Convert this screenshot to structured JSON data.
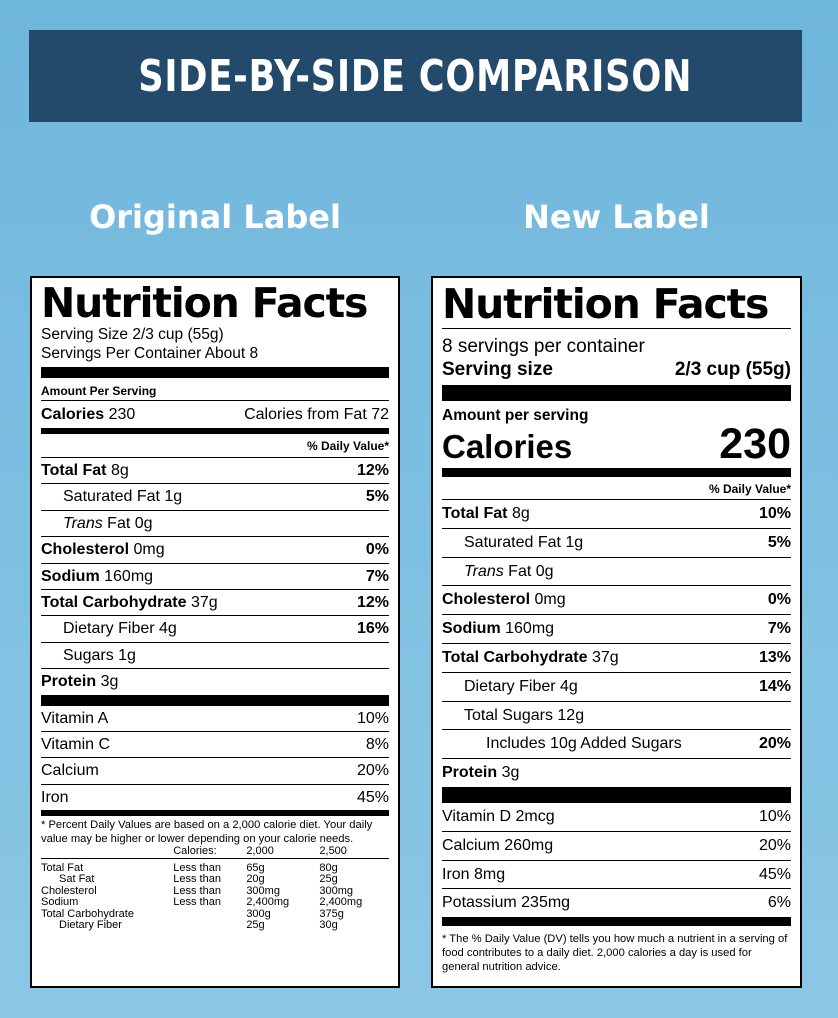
{
  "banner": "SIDE-BY-SIDE COMPARISON",
  "original": {
    "heading": "Original Label",
    "title": "Nutrition Facts",
    "serving_size": "Serving Size 2/3 cup (55g)",
    "servings_per_container": "Servings Per Container About 8",
    "amount_per_serving": "Amount Per Serving",
    "calories_label": "Calories",
    "calories_value": "230",
    "calories_from_fat": "Calories from Fat 72",
    "dv_header": "% Daily Value*",
    "nutrients": [
      {
        "name": "Total Fat",
        "amount": "8g",
        "dv": "12%"
      },
      {
        "name": "Saturated Fat",
        "amount": "1g",
        "dv": "5%"
      },
      {
        "name": "Trans",
        "amount": "Fat 0g",
        "dv": ""
      },
      {
        "name": "Cholesterol",
        "amount": "0mg",
        "dv": "0%"
      },
      {
        "name": "Sodium",
        "amount": "160mg",
        "dv": "7%"
      },
      {
        "name": "Total Carbohydrate",
        "amount": "37g",
        "dv": "12%"
      },
      {
        "name": "Dietary Fiber",
        "amount": "4g",
        "dv": "16%"
      },
      {
        "name": "Sugars",
        "amount": "1g",
        "dv": ""
      },
      {
        "name": "Protein",
        "amount": "3g",
        "dv": ""
      }
    ],
    "vitamins": [
      {
        "name": "Vitamin A",
        "dv": "10%"
      },
      {
        "name": "Vitamin C",
        "dv": "8%"
      },
      {
        "name": "Calcium",
        "dv": "20%"
      },
      {
        "name": "Iron",
        "dv": "45%"
      }
    ],
    "footnote": "* Percent Daily Values are based on a 2,000 calorie diet. Your daily value may be higher or lower depending on your calorie needs.",
    "footnote_table": {
      "header": [
        "Calories:",
        "2,000",
        "2,500"
      ],
      "rows": [
        {
          "name": "Total Fat",
          "qual": "Less than",
          "a": "65g",
          "b": "80g"
        },
        {
          "name": "Sat Fat",
          "qual": "Less than",
          "a": "20g",
          "b": "25g"
        },
        {
          "name": "Cholesterol",
          "qual": "Less than",
          "a": "300mg",
          "b": "300mg"
        },
        {
          "name": "Sodium",
          "qual": "Less than",
          "a": "2,400mg",
          "b": "2,400mg"
        },
        {
          "name": "Total Carbohydrate",
          "qual": "",
          "a": "300g",
          "b": "375g"
        },
        {
          "name": "Dietary Fiber",
          "qual": "",
          "a": "25g",
          "b": "30g"
        }
      ]
    }
  },
  "newlabel": {
    "heading": "New Label",
    "title": "Nutrition Facts",
    "servings_per_container": "8 servings per container",
    "serving_size_label": "Serving size",
    "serving_size_value": "2/3 cup (55g)",
    "amount_per_serving": "Amount per serving",
    "calories_label": "Calories",
    "calories_value": "230",
    "dv_header": "% Daily Value*",
    "nutrients": [
      {
        "name": "Total Fat",
        "amount": "8g",
        "dv": "10%"
      },
      {
        "name": "Saturated Fat",
        "amount": "1g",
        "dv": "5%"
      },
      {
        "name": "Trans",
        "amount": "Fat 0g",
        "dv": ""
      },
      {
        "name": "Cholesterol",
        "amount": "0mg",
        "dv": "0%"
      },
      {
        "name": "Sodium",
        "amount": "160mg",
        "dv": "7%"
      },
      {
        "name": "Total Carbohydrate",
        "amount": "37g",
        "dv": "13%"
      },
      {
        "name": "Dietary Fiber",
        "amount": "4g",
        "dv": "14%"
      },
      {
        "name": "Total Sugars",
        "amount": "12g",
        "dv": ""
      },
      {
        "name": "Includes 10g Added Sugars",
        "amount": "",
        "dv": "20%"
      },
      {
        "name": "Protein",
        "amount": "3g",
        "dv": ""
      }
    ],
    "vitamins": [
      {
        "name": "Vitamin D 2mcg",
        "dv": "10%"
      },
      {
        "name": "Calcium 260mg",
        "dv": "20%"
      },
      {
        "name": "Iron 8mg",
        "dv": "45%"
      },
      {
        "name": "Potassium 235mg",
        "dv": "6%"
      }
    ],
    "footnote": "* The % Daily Value (DV) tells you how much a nutrient in a serving of food contributes to a daily diet. 2,000 calories a day is used for general nutrition advice."
  }
}
